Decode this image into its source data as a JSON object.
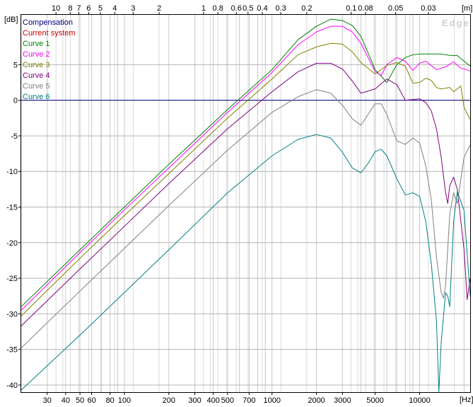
{
  "chart_data": {
    "type": "line",
    "title": "",
    "watermark": "Edge",
    "ylabel": "[dB]",
    "xlabel": "[Hz]",
    "top_axis_label": "[m]",
    "xscale": "log",
    "xlim": [
      20,
      22000
    ],
    "ylim": [
      -41,
      12
    ],
    "grid": true,
    "legend_position": "top-left",
    "x_ticks": [
      {
        "value": 30,
        "label": "30"
      },
      {
        "value": 40,
        "label": "40"
      },
      {
        "value": 50,
        "label": "50"
      },
      {
        "value": 60,
        "label": "60"
      },
      {
        "value": 80,
        "label": "80"
      },
      {
        "value": 100,
        "label": "100"
      },
      {
        "value": 200,
        "label": "200"
      },
      {
        "value": 300,
        "label": "300"
      },
      {
        "value": 400,
        "label": "400"
      },
      {
        "value": 500,
        "label": "500"
      },
      {
        "value": 700,
        "label": "700"
      },
      {
        "value": 1000,
        "label": "1000"
      },
      {
        "value": 2000,
        "label": "2000"
      },
      {
        "value": 3000,
        "label": "3000"
      },
      {
        "value": 5000,
        "label": "5000"
      },
      {
        "value": 10000,
        "label": "10000"
      }
    ],
    "x_minor_ticks": [
      20,
      30,
      40,
      50,
      60,
      70,
      80,
      90,
      100,
      200,
      300,
      400,
      500,
      600,
      700,
      800,
      900,
      1000,
      2000,
      3000,
      4000,
      5000,
      6000,
      7000,
      8000,
      9000,
      10000,
      20000
    ],
    "top_ticks": [
      {
        "value": 10,
        "label": "10"
      },
      {
        "value": 8,
        "label": "8"
      },
      {
        "value": 7,
        "label": "7"
      },
      {
        "value": 6,
        "label": "6"
      },
      {
        "value": 5,
        "label": "5"
      },
      {
        "value": 4,
        "label": "4"
      },
      {
        "value": 3,
        "label": "3"
      },
      {
        "value": 2,
        "label": "2"
      },
      {
        "value": 1,
        "label": "1"
      },
      {
        "value": 0.8,
        "label": "0.8"
      },
      {
        "value": 0.6,
        "label": "0.6"
      },
      {
        "value": 0.5,
        "label": "0.5"
      },
      {
        "value": 0.4,
        "label": "0.4"
      },
      {
        "value": 0.3,
        "label": "0.3"
      },
      {
        "value": 0.2,
        "label": "0.2"
      },
      {
        "value": 0.1,
        "label": "0.1"
      },
      {
        "value": 0.08,
        "label": "0.08"
      },
      {
        "value": 0.05,
        "label": "0.05"
      },
      {
        "value": 0.03,
        "label": "0.03"
      }
    ],
    "top_minor_ticks": [
      10,
      9,
      8,
      7,
      6,
      5,
      4,
      3,
      2,
      1,
      0.9,
      0.8,
      0.7,
      0.6,
      0.5,
      0.4,
      0.3,
      0.2,
      0.1,
      0.09,
      0.08,
      0.07,
      0.06,
      0.05,
      0.04,
      0.03,
      0.02
    ],
    "y_ticks": [
      5,
      0,
      -5,
      -10,
      -15,
      -20,
      -25,
      -30,
      -35,
      -40
    ],
    "series": [
      {
        "name": "Compensation",
        "color": "#000080",
        "points": [
          [
            20,
            0
          ],
          [
            22000,
            0
          ]
        ]
      },
      {
        "name": "Current system",
        "color": "#cc0000",
        "points": []
      },
      {
        "name": "Curve 1",
        "color": "#008000",
        "points": [
          [
            20,
            -29
          ],
          [
            50,
            -21
          ],
          [
            100,
            -15
          ],
          [
            200,
            -9
          ],
          [
            500,
            -1.3
          ],
          [
            1000,
            4.3
          ],
          [
            1500,
            8.5
          ],
          [
            2000,
            10.4
          ],
          [
            2500,
            11.4
          ],
          [
            3000,
            11.2
          ],
          [
            3500,
            10.5
          ],
          [
            4000,
            9
          ],
          [
            5000,
            4.3
          ],
          [
            6000,
            2.5
          ],
          [
            7000,
            5
          ],
          [
            8000,
            6
          ],
          [
            9000,
            6.4
          ],
          [
            10000,
            6.5
          ],
          [
            12000,
            6.5
          ],
          [
            14000,
            6.5
          ],
          [
            16000,
            6.3
          ],
          [
            18000,
            6.3
          ],
          [
            20000,
            5.5
          ],
          [
            22000,
            4.8
          ]
        ]
      },
      {
        "name": "Curve 2",
        "color": "#ff00ff",
        "points": [
          [
            20,
            -29.5
          ],
          [
            50,
            -21.4
          ],
          [
            100,
            -15.4
          ],
          [
            200,
            -9.5
          ],
          [
            500,
            -1.7
          ],
          [
            1000,
            3.9
          ],
          [
            1500,
            7.8
          ],
          [
            2000,
            9.6
          ],
          [
            2500,
            10.4
          ],
          [
            3000,
            10.4
          ],
          [
            3500,
            9.6
          ],
          [
            4000,
            8
          ],
          [
            5000,
            4
          ],
          [
            5500,
            3.5
          ],
          [
            6000,
            5
          ],
          [
            7000,
            6
          ],
          [
            8000,
            5.5
          ],
          [
            9000,
            4.2
          ],
          [
            10000,
            5.2
          ],
          [
            11000,
            5.5
          ],
          [
            13000,
            4.3
          ],
          [
            15000,
            4.7
          ],
          [
            17000,
            5.4
          ],
          [
            19000,
            4.5
          ],
          [
            20000,
            4.4
          ],
          [
            22000,
            4.1
          ]
        ]
      },
      {
        "name": "Curve 3",
        "color": "#808000",
        "points": [
          [
            20,
            -30.3
          ],
          [
            50,
            -22.2
          ],
          [
            100,
            -16.2
          ],
          [
            200,
            -10.3
          ],
          [
            500,
            -2.5
          ],
          [
            1000,
            3
          ],
          [
            1500,
            6.4
          ],
          [
            2000,
            7.5
          ],
          [
            2500,
            8
          ],
          [
            3000,
            7.9
          ],
          [
            3500,
            6.8
          ],
          [
            4000,
            5.3
          ],
          [
            5000,
            3.7
          ],
          [
            6000,
            4.9
          ],
          [
            7000,
            5.3
          ],
          [
            8000,
            4.8
          ],
          [
            9000,
            2.4
          ],
          [
            10000,
            2.5
          ],
          [
            11000,
            3.1
          ],
          [
            12000,
            2.8
          ],
          [
            13000,
            1.8
          ],
          [
            14000,
            1.6
          ],
          [
            16000,
            1.8
          ],
          [
            17000,
            1.2
          ],
          [
            19000,
            2
          ],
          [
            20000,
            -1
          ],
          [
            22000,
            -2.7
          ]
        ]
      },
      {
        "name": "Curve 4",
        "color": "#800080",
        "points": [
          [
            20,
            -31.7
          ],
          [
            50,
            -23.7
          ],
          [
            100,
            -17.7
          ],
          [
            200,
            -11.7
          ],
          [
            500,
            -4
          ],
          [
            1000,
            1.2
          ],
          [
            1500,
            4
          ],
          [
            2000,
            5.2
          ],
          [
            2500,
            5.2
          ],
          [
            3000,
            4.4
          ],
          [
            3500,
            2.7
          ],
          [
            4000,
            1
          ],
          [
            5000,
            1.6
          ],
          [
            6000,
            3
          ],
          [
            7000,
            2.2
          ],
          [
            8000,
            0
          ],
          [
            9000,
            0.1
          ],
          [
            10000,
            0.2
          ],
          [
            11000,
            -0.3
          ],
          [
            12000,
            -1.5
          ],
          [
            13000,
            -4
          ],
          [
            14000,
            -8
          ],
          [
            15000,
            -13
          ],
          [
            15500,
            -14.5
          ],
          [
            16000,
            -12
          ],
          [
            17000,
            -10.8
          ],
          [
            18000,
            -12.5
          ],
          [
            20000,
            -21
          ],
          [
            21000,
            -28
          ],
          [
            22000,
            -25
          ]
        ]
      },
      {
        "name": "Curve 5",
        "color": "#808080",
        "points": [
          [
            20,
            -34.8
          ],
          [
            50,
            -26.8
          ],
          [
            100,
            -20.8
          ],
          [
            200,
            -14.8
          ],
          [
            500,
            -7
          ],
          [
            1000,
            -1.7
          ],
          [
            1500,
            0.5
          ],
          [
            2000,
            1.5
          ],
          [
            2500,
            1
          ],
          [
            3000,
            -0.7
          ],
          [
            3500,
            -2.6
          ],
          [
            4000,
            -3.5
          ],
          [
            5000,
            -0.5
          ],
          [
            5500,
            -0.5
          ],
          [
            6000,
            -2
          ],
          [
            7000,
            -5.7
          ],
          [
            8000,
            -6.2
          ],
          [
            9000,
            -5.3
          ],
          [
            10000,
            -6
          ],
          [
            11000,
            -9.2
          ],
          [
            12000,
            -14
          ],
          [
            13000,
            -22
          ],
          [
            14000,
            -27
          ],
          [
            14500,
            -27.8
          ],
          [
            15000,
            -26
          ],
          [
            16000,
            -16
          ],
          [
            17000,
            -13
          ],
          [
            18000,
            -14.5
          ],
          [
            20000,
            -8
          ],
          [
            22000,
            -6.3
          ]
        ]
      },
      {
        "name": "Curve 6",
        "color": "#008080",
        "points": [
          [
            20,
            -40.7
          ],
          [
            50,
            -33
          ],
          [
            100,
            -27
          ],
          [
            200,
            -21
          ],
          [
            500,
            -13
          ],
          [
            1000,
            -7.8
          ],
          [
            1500,
            -5.5
          ],
          [
            2000,
            -4.8
          ],
          [
            2500,
            -5.3
          ],
          [
            3000,
            -7.3
          ],
          [
            3500,
            -9.5
          ],
          [
            4000,
            -10.2
          ],
          [
            4500,
            -8.8
          ],
          [
            5000,
            -7.2
          ],
          [
            5500,
            -6.9
          ],
          [
            6000,
            -7.8
          ],
          [
            7000,
            -11
          ],
          [
            8000,
            -13.3
          ],
          [
            9000,
            -13
          ],
          [
            10000,
            -13.5
          ],
          [
            11000,
            -17
          ],
          [
            12000,
            -23
          ],
          [
            13000,
            -31
          ],
          [
            13500,
            -41
          ],
          [
            14000,
            -34
          ],
          [
            15000,
            -27
          ],
          [
            15500,
            -27.5
          ],
          [
            16000,
            -29
          ],
          [
            17000,
            -17
          ],
          [
            18000,
            -12.8
          ],
          [
            20000,
            -15.5
          ],
          [
            22000,
            -27.5
          ]
        ]
      }
    ]
  }
}
